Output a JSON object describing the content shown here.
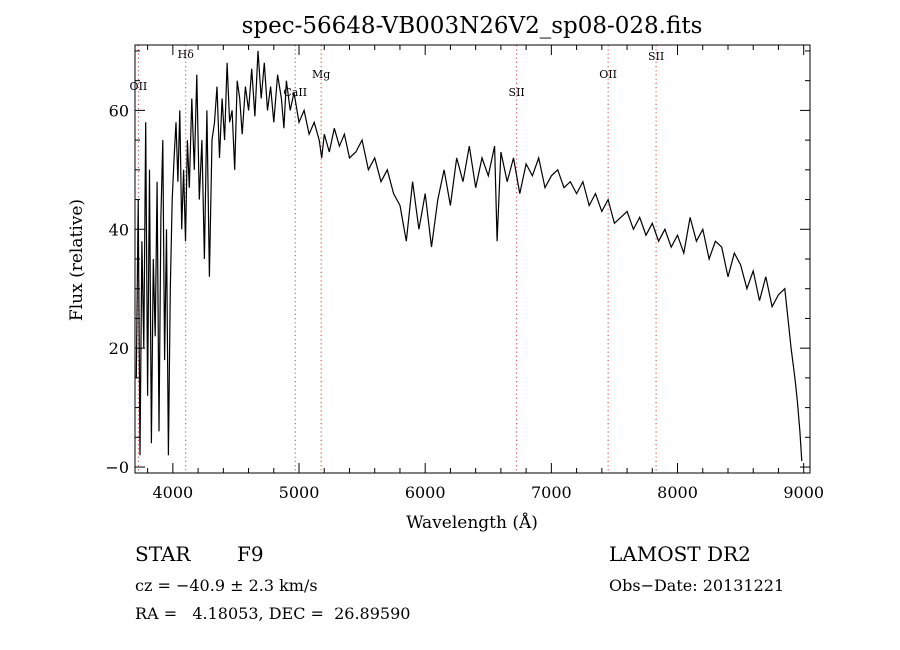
{
  "chart_data": {
    "type": "line",
    "title": "spec-56648-VB003N26V2_sp08-028.fits",
    "xlabel": "Wavelength (Å)",
    "ylabel": "Flux (relative)",
    "xlim": [
      3700,
      9050
    ],
    "ylim": [
      -1,
      71
    ],
    "x_ticks": [
      4000,
      5000,
      6000,
      7000,
      8000,
      9000
    ],
    "y_ticks": [
      0,
      20,
      40,
      60
    ],
    "y_tick_labels": [
      "−0",
      "20",
      "40",
      "60"
    ],
    "line_color": "#000000",
    "marker_color": "#d04040",
    "series": [
      {
        "name": "flux",
        "x": [
          3710,
          3725,
          3740,
          3755,
          3770,
          3785,
          3800,
          3815,
          3830,
          3845,
          3860,
          3875,
          3890,
          3905,
          3920,
          3935,
          3950,
          3965,
          3980,
          3995,
          4010,
          4025,
          4040,
          4055,
          4070,
          4085,
          4100,
          4115,
          4130,
          4150,
          4170,
          4190,
          4210,
          4230,
          4250,
          4270,
          4290,
          4310,
          4330,
          4350,
          4370,
          4390,
          4410,
          4430,
          4450,
          4470,
          4490,
          4510,
          4530,
          4550,
          4575,
          4600,
          4625,
          4650,
          4675,
          4700,
          4725,
          4750,
          4775,
          4800,
          4830,
          4860,
          4880,
          4900,
          4930,
          4960,
          5000,
          5040,
          5080,
          5120,
          5160,
          5180,
          5200,
          5240,
          5280,
          5320,
          5360,
          5400,
          5450,
          5500,
          5550,
          5600,
          5650,
          5700,
          5750,
          5800,
          5850,
          5900,
          5950,
          6000,
          6050,
          6100,
          6150,
          6200,
          6250,
          6300,
          6350,
          6400,
          6450,
          6500,
          6550,
          6570,
          6600,
          6650,
          6700,
          6750,
          6800,
          6850,
          6900,
          6950,
          7000,
          7050,
          7100,
          7150,
          7200,
          7250,
          7300,
          7350,
          7400,
          7450,
          7500,
          7550,
          7600,
          7650,
          7700,
          7750,
          7800,
          7850,
          7900,
          7950,
          8000,
          8050,
          8100,
          8150,
          8200,
          8250,
          8300,
          8350,
          8400,
          8450,
          8500,
          8550,
          8600,
          8650,
          8700,
          8750,
          8800,
          8850,
          8900,
          8930,
          8950,
          8970,
          8985
        ],
        "y": [
          15,
          45,
          2,
          38,
          20,
          58,
          12,
          50,
          4,
          35,
          22,
          48,
          6,
          42,
          55,
          18,
          40,
          2,
          30,
          45,
          52,
          58,
          48,
          60,
          40,
          50,
          38,
          55,
          47,
          62,
          50,
          66,
          45,
          55,
          35,
          60,
          32,
          55,
          58,
          64,
          52,
          62,
          55,
          68,
          58,
          60,
          50,
          65,
          62,
          56,
          64,
          60,
          67,
          59,
          70,
          62,
          68,
          60,
          64,
          58,
          66,
          62,
          57,
          65,
          60,
          63,
          58,
          60,
          56,
          58,
          55,
          52,
          56,
          53,
          57,
          54,
          56,
          52,
          53,
          55,
          50,
          52,
          48,
          50,
          46,
          44,
          38,
          48,
          40,
          46,
          37,
          45,
          50,
          44,
          52,
          48,
          54,
          47,
          52,
          49,
          54,
          38,
          53,
          48,
          52,
          46,
          51,
          49,
          52,
          47,
          49,
          50,
          47,
          48,
          46,
          48,
          44,
          46,
          43,
          45,
          41,
          42,
          43,
          40,
          42,
          39,
          41,
          38,
          40,
          37,
          39,
          36,
          42,
          38,
          40,
          35,
          38,
          37,
          32,
          36,
          34,
          30,
          33,
          28,
          32,
          27,
          29,
          30,
          20,
          15,
          11,
          6,
          1
        ]
      }
    ],
    "line_markers": [
      {
        "label": "OII",
        "x": 3727
      },
      {
        "label": "Hδ",
        "x": 4102
      },
      {
        "label": "CaII",
        "x": 4970
      },
      {
        "label": "Mg",
        "x": 5175
      },
      {
        "label": "SII",
        "x": 6725
      },
      {
        "label": "OII",
        "x": 7450
      },
      {
        "label": "SII",
        "x": 7830
      }
    ]
  },
  "info": {
    "class": "STAR",
    "subclass": "F9",
    "survey": "LAMOST DR2",
    "cz": "cz = −40.9 ± 2.3 km/s",
    "obs_date": "Obs−Date: 20131221",
    "radec": "RA =   4.18053, DEC =  26.89590"
  }
}
